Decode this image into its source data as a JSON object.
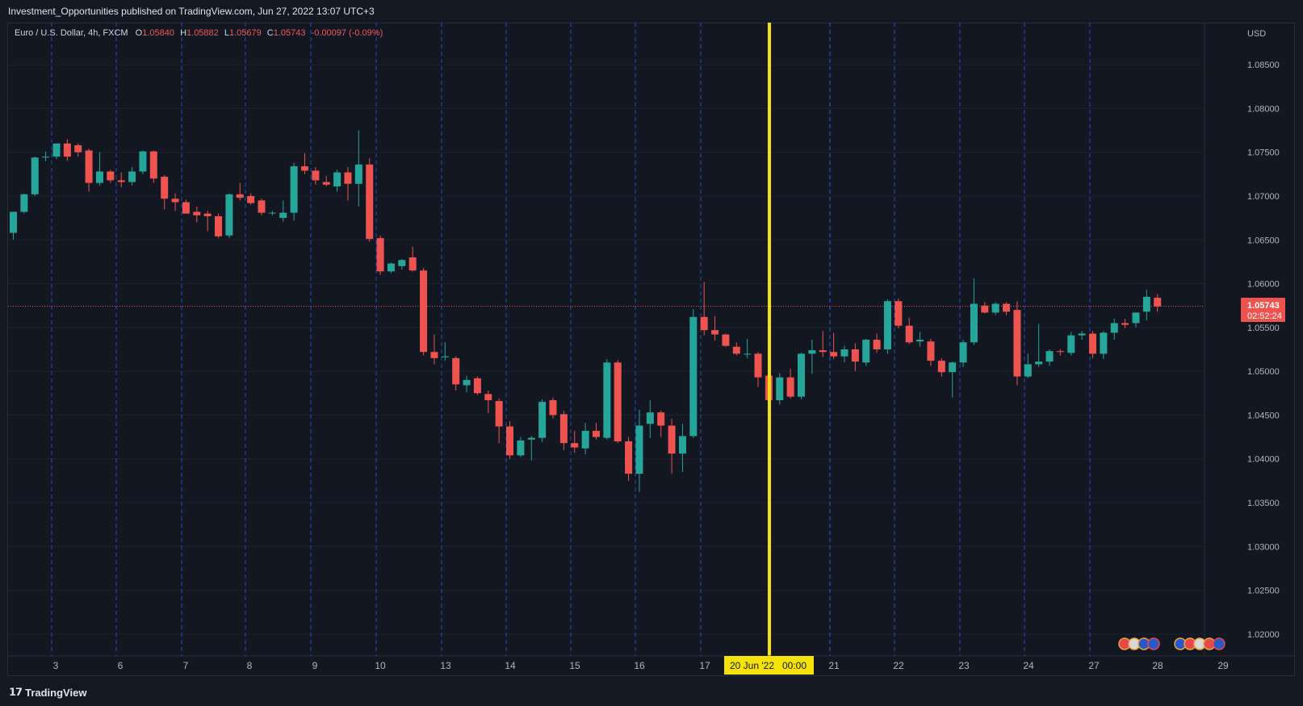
{
  "header": {
    "publish_line": "Investment_Opportunities published on TradingView.com, Jun 27, 2022 13:07 UTC+3"
  },
  "legend": {
    "symbol": "Euro / U.S. Dollar, 4h, FXCM",
    "o_label": "O",
    "o_value": "1.05840",
    "h_label": "H",
    "h_value": "1.05882",
    "l_label": "L",
    "l_value": "1.05679",
    "c_label": "C",
    "c_value": "1.05743",
    "change": "-0.00097 (-0.09%)"
  },
  "price_axis": {
    "currency": "USD",
    "ticks": [
      "1.08500",
      "1.08000",
      "1.07500",
      "1.07000",
      "1.06500",
      "1.06000",
      "1.05500",
      "1.05000",
      "1.04500",
      "1.04000",
      "1.03500",
      "1.03000",
      "1.02500",
      "1.02000"
    ]
  },
  "current_price": {
    "value": "1.05743",
    "countdown": "02:52:24"
  },
  "time_axis": {
    "ticks": [
      "3",
      "6",
      "7",
      "8",
      "9",
      "10",
      "13",
      "14",
      "15",
      "16",
      "17",
      "21",
      "22",
      "23",
      "24",
      "27",
      "28",
      "29"
    ],
    "crosshair_label": "20 Jun '22   00:00"
  },
  "footer": {
    "brand": "TradingView"
  },
  "colors": {
    "up": "#26a69a",
    "down": "#ef5350",
    "crosshair": "#f5e20a",
    "grid": "#1e222d",
    "session_line": "#2962ff",
    "price_line": "#ef5350"
  },
  "chart_data": {
    "type": "candlestick",
    "symbol": "EURUSD",
    "timeframe": "4h",
    "ylim": [
      1.0175,
      1.0898
    ],
    "candles": [
      {
        "o": 1.0658,
        "h": 1.0682,
        "l": 1.065,
        "c": 1.0682
      },
      {
        "o": 1.0682,
        "h": 1.0703,
        "l": 1.068,
        "c": 1.0702
      },
      {
        "o": 1.0702,
        "h": 1.0745,
        "l": 1.07,
        "c": 1.0744
      },
      {
        "o": 1.0744,
        "h": 1.0751,
        "l": 1.074,
        "c": 1.0745
      },
      {
        "o": 1.0745,
        "h": 1.076,
        "l": 1.0742,
        "c": 1.076
      },
      {
        "o": 1.076,
        "h": 1.0765,
        "l": 1.074,
        "c": 1.0745
      },
      {
        "o": 1.0758,
        "h": 1.076,
        "l": 1.0745,
        "c": 1.075
      },
      {
        "o": 1.0752,
        "h": 1.0754,
        "l": 1.0705,
        "c": 1.0715
      },
      {
        "o": 1.0715,
        "h": 1.075,
        "l": 1.0712,
        "c": 1.0728
      },
      {
        "o": 1.0728,
        "h": 1.073,
        "l": 1.0715,
        "c": 1.0718
      },
      {
        "o": 1.0718,
        "h": 1.0727,
        "l": 1.071,
        "c": 1.0716
      },
      {
        "o": 1.0716,
        "h": 1.0733,
        "l": 1.0712,
        "c": 1.0728
      },
      {
        "o": 1.0728,
        "h": 1.0752,
        "l": 1.0725,
        "c": 1.0751
      },
      {
        "o": 1.0751,
        "h": 1.0752,
        "l": 1.0715,
        "c": 1.072
      },
      {
        "o": 1.0722,
        "h": 1.0724,
        "l": 1.0685,
        "c": 1.0697
      },
      {
        "o": 1.0697,
        "h": 1.0703,
        "l": 1.0683,
        "c": 1.0693
      },
      {
        "o": 1.0693,
        "h": 1.0696,
        "l": 1.068,
        "c": 1.068
      },
      {
        "o": 1.0682,
        "h": 1.0688,
        "l": 1.067,
        "c": 1.0678
      },
      {
        "o": 1.068,
        "h": 1.0683,
        "l": 1.066,
        "c": 1.0677
      },
      {
        "o": 1.0677,
        "h": 1.068,
        "l": 1.0652,
        "c": 1.0654
      },
      {
        "o": 1.0655,
        "h": 1.0703,
        "l": 1.0652,
        "c": 1.0702
      },
      {
        "o": 1.0702,
        "h": 1.0715,
        "l": 1.0695,
        "c": 1.0698
      },
      {
        "o": 1.07,
        "h": 1.0703,
        "l": 1.069,
        "c": 1.0692
      },
      {
        "o": 1.0695,
        "h": 1.0697,
        "l": 1.0678,
        "c": 1.0681
      },
      {
        "o": 1.0681,
        "h": 1.0683,
        "l": 1.0678,
        "c": 1.0681
      },
      {
        "o": 1.0675,
        "h": 1.0695,
        "l": 1.0671,
        "c": 1.0681
      },
      {
        "o": 1.0681,
        "h": 1.0738,
        "l": 1.0672,
        "c": 1.0734
      },
      {
        "o": 1.0734,
        "h": 1.0749,
        "l": 1.0725,
        "c": 1.0729
      },
      {
        "o": 1.0729,
        "h": 1.0733,
        "l": 1.0713,
        "c": 1.0718
      },
      {
        "o": 1.0716,
        "h": 1.0723,
        "l": 1.0711,
        "c": 1.0713
      },
      {
        "o": 1.0711,
        "h": 1.073,
        "l": 1.0705,
        "c": 1.0727
      },
      {
        "o": 1.0727,
        "h": 1.0733,
        "l": 1.0695,
        "c": 1.0714
      },
      {
        "o": 1.0714,
        "h": 1.0775,
        "l": 1.0688,
        "c": 1.0736
      },
      {
        "o": 1.0736,
        "h": 1.0743,
        "l": 1.0648,
        "c": 1.0651
      },
      {
        "o": 1.0652,
        "h": 1.0655,
        "l": 1.061,
        "c": 1.0614
      },
      {
        "o": 1.0614,
        "h": 1.0624,
        "l": 1.0612,
        "c": 1.0623
      },
      {
        "o": 1.062,
        "h": 1.0628,
        "l": 1.0616,
        "c": 1.0627
      },
      {
        "o": 1.063,
        "h": 1.0642,
        "l": 1.0614,
        "c": 1.0615
      },
      {
        "o": 1.0615,
        "h": 1.0618,
        "l": 1.0518,
        "c": 1.0522
      },
      {
        "o": 1.0522,
        "h": 1.0542,
        "l": 1.0508,
        "c": 1.0515
      },
      {
        "o": 1.0516,
        "h": 1.0533,
        "l": 1.0512,
        "c": 1.0517
      },
      {
        "o": 1.0515,
        "h": 1.0517,
        "l": 1.0478,
        "c": 1.0485
      },
      {
        "o": 1.0484,
        "h": 1.0495,
        "l": 1.0476,
        "c": 1.049
      },
      {
        "o": 1.0492,
        "h": 1.0494,
        "l": 1.0473,
        "c": 1.0475
      },
      {
        "o": 1.0474,
        "h": 1.0478,
        "l": 1.0452,
        "c": 1.0467
      },
      {
        "o": 1.0466,
        "h": 1.0469,
        "l": 1.0418,
        "c": 1.0437
      },
      {
        "o": 1.0437,
        "h": 1.0443,
        "l": 1.04,
        "c": 1.0404
      },
      {
        "o": 1.0404,
        "h": 1.0425,
        "l": 1.0402,
        "c": 1.0421
      },
      {
        "o": 1.0422,
        "h": 1.0426,
        "l": 1.0398,
        "c": 1.0424
      },
      {
        "o": 1.0424,
        "h": 1.0468,
        "l": 1.0419,
        "c": 1.0465
      },
      {
        "o": 1.0467,
        "h": 1.047,
        "l": 1.0446,
        "c": 1.045
      },
      {
        "o": 1.0451,
        "h": 1.0455,
        "l": 1.041,
        "c": 1.0418
      },
      {
        "o": 1.0418,
        "h": 1.0432,
        "l": 1.0407,
        "c": 1.0413
      },
      {
        "o": 1.0412,
        "h": 1.0441,
        "l": 1.0405,
        "c": 1.0432
      },
      {
        "o": 1.0432,
        "h": 1.0441,
        "l": 1.0422,
        "c": 1.0425
      },
      {
        "o": 1.0424,
        "h": 1.0514,
        "l": 1.0422,
        "c": 1.051
      },
      {
        "o": 1.051,
        "h": 1.0513,
        "l": 1.0418,
        "c": 1.042
      },
      {
        "o": 1.042,
        "h": 1.0425,
        "l": 1.0375,
        "c": 1.0383
      },
      {
        "o": 1.0383,
        "h": 1.0456,
        "l": 1.0362,
        "c": 1.0438
      },
      {
        "o": 1.044,
        "h": 1.0467,
        "l": 1.0424,
        "c": 1.0453
      },
      {
        "o": 1.0453,
        "h": 1.0455,
        "l": 1.0425,
        "c": 1.0438
      },
      {
        "o": 1.0438,
        "h": 1.0446,
        "l": 1.0383,
        "c": 1.0406
      },
      {
        "o": 1.0406,
        "h": 1.044,
        "l": 1.0385,
        "c": 1.0426
      },
      {
        "o": 1.0426,
        "h": 1.0571,
        "l": 1.0424,
        "c": 1.0562
      },
      {
        "o": 1.0562,
        "h": 1.0602,
        "l": 1.0541,
        "c": 1.0547
      },
      {
        "o": 1.0547,
        "h": 1.0563,
        "l": 1.0535,
        "c": 1.0542
      },
      {
        "o": 1.0542,
        "h": 1.0543,
        "l": 1.0528,
        "c": 1.0529
      },
      {
        "o": 1.0528,
        "h": 1.0533,
        "l": 1.0518,
        "c": 1.052
      },
      {
        "o": 1.052,
        "h": 1.0537,
        "l": 1.0515,
        "c": 1.052
      },
      {
        "o": 1.052,
        "h": 1.0522,
        "l": 1.0482,
        "c": 1.0493
      },
      {
        "o": 1.0495,
        "h": 1.0498,
        "l": 1.0454,
        "c": 1.0467
      },
      {
        "o": 1.0467,
        "h": 1.0498,
        "l": 1.0462,
        "c": 1.0493
      },
      {
        "o": 1.0493,
        "h": 1.0503,
        "l": 1.0469,
        "c": 1.0471
      },
      {
        "o": 1.0471,
        "h": 1.0521,
        "l": 1.0468,
        "c": 1.052
      },
      {
        "o": 1.052,
        "h": 1.0536,
        "l": 1.0497,
        "c": 1.0524
      },
      {
        "o": 1.0524,
        "h": 1.0546,
        "l": 1.0516,
        "c": 1.0522
      },
      {
        "o": 1.0522,
        "h": 1.0544,
        "l": 1.0514,
        "c": 1.0517
      },
      {
        "o": 1.0517,
        "h": 1.0529,
        "l": 1.051,
        "c": 1.0525
      },
      {
        "o": 1.0525,
        "h": 1.0532,
        "l": 1.05,
        "c": 1.0511
      },
      {
        "o": 1.051,
        "h": 1.0537,
        "l": 1.0506,
        "c": 1.0536
      },
      {
        "o": 1.0536,
        "h": 1.0543,
        "l": 1.0521,
        "c": 1.0525
      },
      {
        "o": 1.0525,
        "h": 1.0582,
        "l": 1.052,
        "c": 1.058
      },
      {
        "o": 1.058,
        "h": 1.0583,
        "l": 1.0549,
        "c": 1.0552
      },
      {
        "o": 1.0552,
        "h": 1.0561,
        "l": 1.0531,
        "c": 1.0533
      },
      {
        "o": 1.0534,
        "h": 1.0545,
        "l": 1.0528,
        "c": 1.0536
      },
      {
        "o": 1.0534,
        "h": 1.0537,
        "l": 1.0506,
        "c": 1.0512
      },
      {
        "o": 1.0512,
        "h": 1.0515,
        "l": 1.0494,
        "c": 1.0499
      },
      {
        "o": 1.0499,
        "h": 1.0511,
        "l": 1.047,
        "c": 1.051
      },
      {
        "o": 1.051,
        "h": 1.0536,
        "l": 1.0505,
        "c": 1.0533
      },
      {
        "o": 1.0533,
        "h": 1.0606,
        "l": 1.053,
        "c": 1.0577
      },
      {
        "o": 1.0575,
        "h": 1.0579,
        "l": 1.0566,
        "c": 1.0567
      },
      {
        "o": 1.0567,
        "h": 1.0579,
        "l": 1.0564,
        "c": 1.0577
      },
      {
        "o": 1.0577,
        "h": 1.0579,
        "l": 1.0564,
        "c": 1.0568
      },
      {
        "o": 1.057,
        "h": 1.058,
        "l": 1.0484,
        "c": 1.0494
      },
      {
        "o": 1.0494,
        "h": 1.052,
        "l": 1.0492,
        "c": 1.0508
      },
      {
        "o": 1.0508,
        "h": 1.0554,
        "l": 1.0505,
        "c": 1.0511
      },
      {
        "o": 1.0511,
        "h": 1.0525,
        "l": 1.0506,
        "c": 1.0523
      },
      {
        "o": 1.0523,
        "h": 1.0525,
        "l": 1.0518,
        "c": 1.0522
      },
      {
        "o": 1.0521,
        "h": 1.0545,
        "l": 1.0518,
        "c": 1.0541
      },
      {
        "o": 1.0541,
        "h": 1.0546,
        "l": 1.0536,
        "c": 1.0543
      },
      {
        "o": 1.0543,
        "h": 1.0546,
        "l": 1.0515,
        "c": 1.052
      },
      {
        "o": 1.052,
        "h": 1.0546,
        "l": 1.0514,
        "c": 1.0544
      },
      {
        "o": 1.0544,
        "h": 1.056,
        "l": 1.0536,
        "c": 1.0555
      },
      {
        "o": 1.0555,
        "h": 1.056,
        "l": 1.0549,
        "c": 1.0553
      },
      {
        "o": 1.0555,
        "h": 1.0567,
        "l": 1.055,
        "c": 1.0567
      },
      {
        "o": 1.0568,
        "h": 1.0593,
        "l": 1.0558,
        "c": 1.0585
      },
      {
        "o": 1.0584,
        "h": 1.0588,
        "l": 1.0568,
        "c": 1.0574
      }
    ]
  }
}
